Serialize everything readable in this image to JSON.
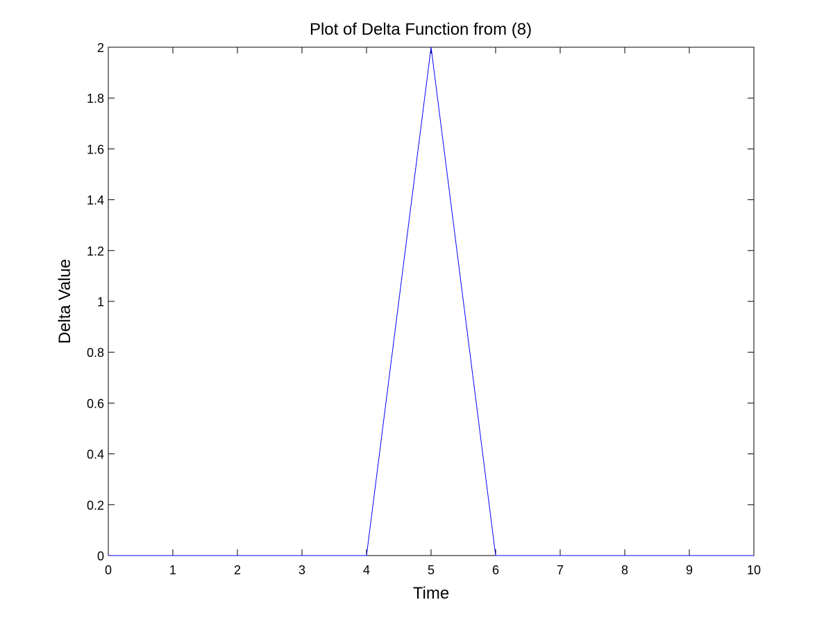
{
  "chart_data": {
    "type": "line",
    "title": "Plot of Delta Function from (8)",
    "xlabel": "Time",
    "ylabel": "Delta Value",
    "xlim": [
      0,
      10
    ],
    "ylim": [
      0,
      2
    ],
    "xticks": [
      0,
      1,
      2,
      3,
      4,
      5,
      6,
      7,
      8,
      9,
      10
    ],
    "xtick_labels": [
      "0",
      "1",
      "2",
      "3",
      "4",
      "5",
      "6",
      "7",
      "8",
      "9",
      "10"
    ],
    "yticks": [
      0,
      0.2,
      0.4,
      0.6,
      0.8,
      1,
      1.2,
      1.4,
      1.6,
      1.8,
      2
    ],
    "ytick_labels": [
      "0",
      "0.2",
      "0.4",
      "0.6",
      "0.8",
      "1",
      "1.2",
      "1.4",
      "1.6",
      "1.8",
      "2"
    ],
    "grid": false,
    "legend": false,
    "series": [
      {
        "color": "#0000ff",
        "x": [
          0,
          4,
          5,
          6,
          10
        ],
        "y": [
          0,
          0,
          2,
          0,
          0
        ]
      }
    ]
  }
}
